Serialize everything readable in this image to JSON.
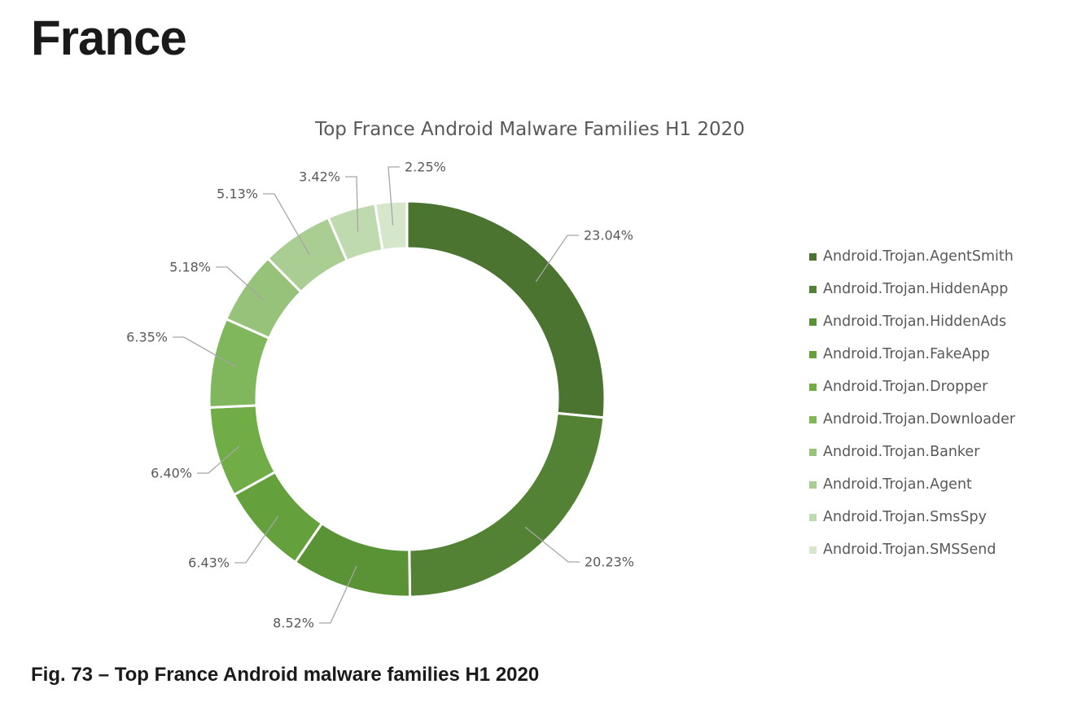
{
  "page": {
    "heading": "France",
    "caption": "Fig. 73 – Top France Android malware families H1 2020"
  },
  "chart_data": {
    "type": "pie",
    "variant": "donut",
    "title": "Top France Android Malware Families H1 2020",
    "legend_position": "right",
    "categories": [
      "Android.Trojan.AgentSmith",
      "Android.Trojan.HiddenApp",
      "Android.Trojan.HiddenAds",
      "Android.Trojan.FakeApp",
      "Android.Trojan.Dropper",
      "Android.Trojan.Downloader",
      "Android.Trojan.Banker",
      "Android.Trojan.Agent",
      "Android.Trojan.SmsSpy",
      "Android.Trojan.SMSSend"
    ],
    "values": [
      23.04,
      20.23,
      8.52,
      6.43,
      6.4,
      6.35,
      5.18,
      5.13,
      3.42,
      2.25
    ],
    "data_labels": [
      "23.04%",
      "20.23%",
      "8.52%",
      "6.43%",
      "6.40%",
      "6.35%",
      "5.18%",
      "5.13%",
      "3.42%",
      "2.25%"
    ],
    "colors": [
      "#4a7430",
      "#548235",
      "#5a9236",
      "#64a03c",
      "#70ad47",
      "#80b65c",
      "#96c27a",
      "#a9cd93",
      "#c0dab0",
      "#d5e6cb"
    ]
  }
}
